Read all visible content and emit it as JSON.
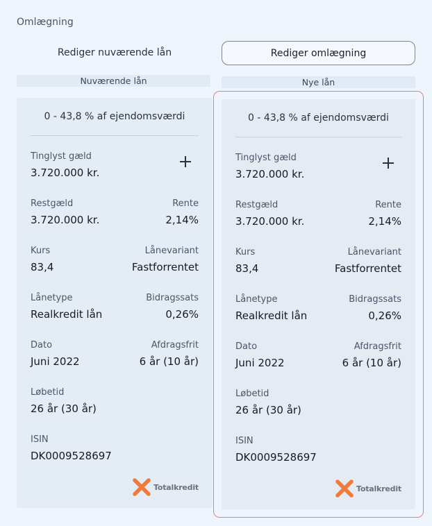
{
  "header": {
    "title": "Omlægning"
  },
  "tabs": {
    "current": "Rediger nuværende lån",
    "new": "Rediger omlægning"
  },
  "sections": {
    "current": "Nuværende lån",
    "new": "Nye lån"
  },
  "current": {
    "range": "0 - 43,8 % af ejendomsværdi",
    "tinglyst_label": "Tinglyst gæld",
    "tinglyst_value": "3.720.000 kr.",
    "restgaeld_label": "Restgæld",
    "restgaeld_value": "3.720.000 kr.",
    "rente_label": "Rente",
    "rente_value": "2,14%",
    "kurs_label": "Kurs",
    "kurs_value": "83,4",
    "variant_label": "Lånevariant",
    "variant_value": "Fastforrentet",
    "type_label": "Lånetype",
    "type_value": "Realkredit lån",
    "bidrag_label": "Bidragssats",
    "bidrag_value": "0,26%",
    "dato_label": "Dato",
    "dato_value": "Juni 2022",
    "afdrag_label": "Afdragsfrit",
    "afdrag_value": "6 år (10 år)",
    "loebetid_label": "Løbetid",
    "loebetid_value": "26 år (30 år)",
    "isin_label": "ISIN",
    "isin_value": "DK0009528697",
    "logo_text": "Totalkredit"
  },
  "new": {
    "range": "0 - 43,8 % af ejendomsværdi",
    "tinglyst_label": "Tinglyst gæld",
    "tinglyst_value": "3.720.000 kr.",
    "restgaeld_label": "Restgæld",
    "restgaeld_value": "3.720.000 kr.",
    "rente_label": "Rente",
    "rente_value": "2,14%",
    "kurs_label": "Kurs",
    "kurs_value": "83,4",
    "variant_label": "Lånevariant",
    "variant_value": "Fastforrentet",
    "type_label": "Lånetype",
    "type_value": "Realkredit lån",
    "bidrag_label": "Bidragssats",
    "bidrag_value": "0,26%",
    "dato_label": "Dato",
    "dato_value": "Juni 2022",
    "afdrag_label": "Afdragsfrit",
    "afdrag_value": "6 år (10 år)",
    "loebetid_label": "Løbetid",
    "loebetid_value": "26 år (30 år)",
    "isin_label": "ISIN",
    "isin_value": "DK0009528697",
    "logo_text": "Totalkredit"
  },
  "colors": {
    "highlight_border": "#e67e88",
    "logo_orange": "#f07a3c"
  },
  "icons": {
    "add": "plus-icon",
    "brand": "totalkredit-logo-icon"
  }
}
